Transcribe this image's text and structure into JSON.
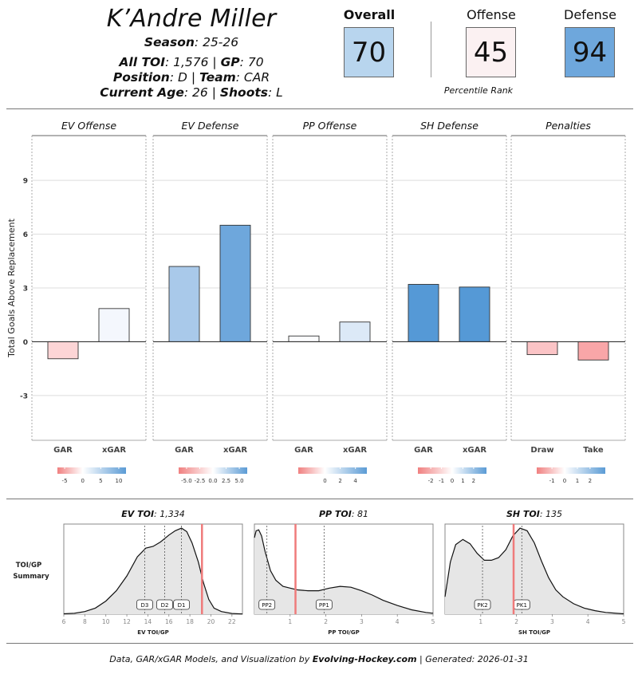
{
  "header": {
    "name": "K’Andre Miller",
    "season_label": "Season",
    "season": "25-26",
    "toi_label": "All TOI",
    "toi": "1,576",
    "gp_label": "GP",
    "gp": "70",
    "position_label": "Position",
    "position": "D",
    "team_label": "Team",
    "team": "CAR",
    "age_label": "Current Age",
    "age": "26",
    "shoots_label": "Shoots",
    "shoots": "L"
  },
  "ranks": {
    "overall_label": "Overall",
    "overall": "70",
    "offense_label": "Offense",
    "offense": "45",
    "defense_label": "Defense",
    "defense": "94",
    "note": "Percentile Rank",
    "colors": {
      "overall": "#b8d5ee",
      "offense": "#fbf1f2",
      "defense": "#6ea7dc"
    }
  },
  "footer": {
    "prefix": "Data, GAR/xGAR Models, and Visualization by",
    "site": "Evolving-Hockey.com",
    "suffix": "| Generated: 2026-01-31"
  },
  "chart_data": [
    {
      "type": "bar",
      "ylabel": "Total Goals Above Replacement",
      "ylim": [
        -5.5,
        11.5
      ],
      "yticks": [
        -3,
        0,
        3,
        6,
        9
      ],
      "ytick_labels": [
        "-3",
        "0",
        "3",
        "6",
        "9"
      ],
      "panels": [
        {
          "title": "EV Offense",
          "categories": [
            "GAR",
            "xGAR"
          ],
          "values": [
            -0.95,
            1.85
          ],
          "bar_colors": [
            "#fdd5d6",
            "#f4f7fd"
          ],
          "legend": {
            "range": [
              -7,
              12
            ],
            "ticks": [
              -5,
              0,
              5,
              10
            ],
            "tick_labels": [
              "-5",
              "0",
              "5",
              "10"
            ],
            "colors": [
              "#f08080",
              "#ffffff",
              "#5b9bd5"
            ]
          }
        },
        {
          "title": "EV Defense",
          "categories": [
            "GAR",
            "xGAR"
          ],
          "values": [
            4.2,
            6.5
          ],
          "bar_colors": [
            "#a9c9ea",
            "#6ea7dc"
          ],
          "legend": {
            "range": [
              -6.5,
              6.5
            ],
            "ticks": [
              -5.0,
              -2.5,
              0.0,
              2.5,
              5.0
            ],
            "tick_labels": [
              "-5.0",
              "-2.5",
              "0.0",
              "2.5",
              "5.0"
            ],
            "colors": [
              "#f08080",
              "#ffffff",
              "#5b9bd5"
            ]
          }
        },
        {
          "title": "PP Offense",
          "categories": [
            "GAR",
            "xGAR"
          ],
          "values": [
            0.32,
            1.1
          ],
          "bar_colors": [
            "#fbfcfe",
            "#dce9f7"
          ],
          "legend": {
            "range": [
              -3.5,
              5.5
            ],
            "ticks": [
              0,
              2,
              4
            ],
            "tick_labels": [
              "0",
              "2",
              "4"
            ],
            "colors": [
              "#f08080",
              "#ffffff",
              "#5b9bd5"
            ]
          }
        },
        {
          "title": "SH Defense",
          "categories": [
            "GAR",
            "xGAR"
          ],
          "values": [
            3.2,
            3.05
          ],
          "bar_colors": [
            "#5599d6",
            "#5599d6"
          ],
          "legend": {
            "range": [
              -3.2,
              3.2
            ],
            "ticks": [
              -2,
              -1,
              0,
              1,
              2
            ],
            "tick_labels": [
              "-2",
              "-1",
              "0",
              "1",
              "2"
            ],
            "colors": [
              "#f08080",
              "#ffffff",
              "#5b9bd5"
            ]
          }
        },
        {
          "title": "Penalties",
          "categories": [
            "Draw",
            "Take"
          ],
          "values": [
            -0.72,
            -1.02
          ],
          "bar_colors": [
            "#fbc4c6",
            "#f9a6a8"
          ],
          "legend": {
            "range": [
              -2.2,
              3.2
            ],
            "ticks": [
              -1,
              0,
              1,
              2
            ],
            "tick_labels": [
              "-1",
              "0",
              "1",
              "2"
            ],
            "colors": [
              "#f08080",
              "#ffffff",
              "#5b9bd5"
            ]
          }
        }
      ]
    },
    {
      "type": "area",
      "summary_label_line1": "TOI/GP",
      "summary_label_line2": "Summary",
      "panels": [
        {
          "title_label": "EV TOI",
          "title_value": "1,334",
          "xlabel": "EV TOI/GP",
          "xlim": [
            6,
            23
          ],
          "xticks": [
            6,
            8,
            10,
            12,
            14,
            16,
            18,
            20,
            22
          ],
          "xtick_labels": [
            "6",
            "8",
            "10",
            "12",
            "14",
            "16",
            "18",
            "20",
            "22"
          ],
          "density_x": [
            6,
            7,
            8,
            9,
            10,
            11,
            12,
            13,
            13.8,
            14.5,
            15.2,
            16,
            16.6,
            17.2,
            17.7,
            18.2,
            18.8,
            19.3,
            19.8,
            20.3,
            21,
            22,
            23
          ],
          "density_y": [
            0.005,
            0.01,
            0.03,
            0.07,
            0.15,
            0.27,
            0.44,
            0.66,
            0.76,
            0.78,
            0.83,
            0.91,
            0.96,
            0.99,
            0.95,
            0.82,
            0.6,
            0.36,
            0.17,
            0.07,
            0.03,
            0.008,
            0.003
          ],
          "player_value": 19.15,
          "markers": [
            {
              "label": "D3",
              "value": 13.7
            },
            {
              "label": "D2",
              "value": 15.6
            },
            {
              "label": "D1",
              "value": 17.2
            }
          ]
        },
        {
          "title_label": "PP TOI",
          "title_value": "81",
          "xlabel": "PP TOI/GP",
          "xlim": [
            0,
            5
          ],
          "xticks": [
            1,
            2,
            3,
            4,
            5
          ],
          "xtick_labels": [
            "1",
            "2",
            "3",
            "4",
            "5"
          ],
          "density_x": [
            0,
            0.05,
            0.12,
            0.2,
            0.3,
            0.45,
            0.6,
            0.8,
            1.0,
            1.2,
            1.5,
            1.8,
            2.1,
            2.4,
            2.7,
            3.0,
            3.3,
            3.6,
            4.0,
            4.4,
            4.8,
            5.0
          ],
          "density_y": [
            0.88,
            0.96,
            0.97,
            0.9,
            0.72,
            0.5,
            0.39,
            0.32,
            0.3,
            0.28,
            0.27,
            0.27,
            0.3,
            0.32,
            0.31,
            0.27,
            0.22,
            0.16,
            0.1,
            0.05,
            0.02,
            0.01
          ],
          "player_value": 1.15,
          "markers": [
            {
              "label": "PP2",
              "value": 0.35
            },
            {
              "label": "PP1",
              "value": 1.95
            }
          ]
        },
        {
          "title_label": "SH TOI",
          "title_value": "135",
          "xlabel": "SH TOI/GP",
          "xlim": [
            0,
            5
          ],
          "xticks": [
            1,
            2,
            3,
            4,
            5
          ],
          "xtick_labels": [
            "1",
            "2",
            "3",
            "4",
            "5"
          ],
          "density_x": [
            0,
            0.15,
            0.3,
            0.5,
            0.7,
            0.9,
            1.1,
            1.3,
            1.5,
            1.7,
            1.9,
            2.1,
            2.3,
            2.5,
            2.7,
            2.9,
            3.1,
            3.3,
            3.6,
            3.9,
            4.2,
            4.5,
            4.8,
            5.0
          ],
          "density_y": [
            0.2,
            0.6,
            0.8,
            0.86,
            0.81,
            0.7,
            0.62,
            0.62,
            0.65,
            0.74,
            0.9,
            0.99,
            0.96,
            0.82,
            0.61,
            0.42,
            0.28,
            0.2,
            0.12,
            0.07,
            0.04,
            0.02,
            0.01,
            0.005
          ],
          "player_value": 1.92,
          "markers": [
            {
              "label": "PK2",
              "value": 1.05
            },
            {
              "label": "PK1",
              "value": 2.15
            }
          ]
        }
      ]
    }
  ]
}
